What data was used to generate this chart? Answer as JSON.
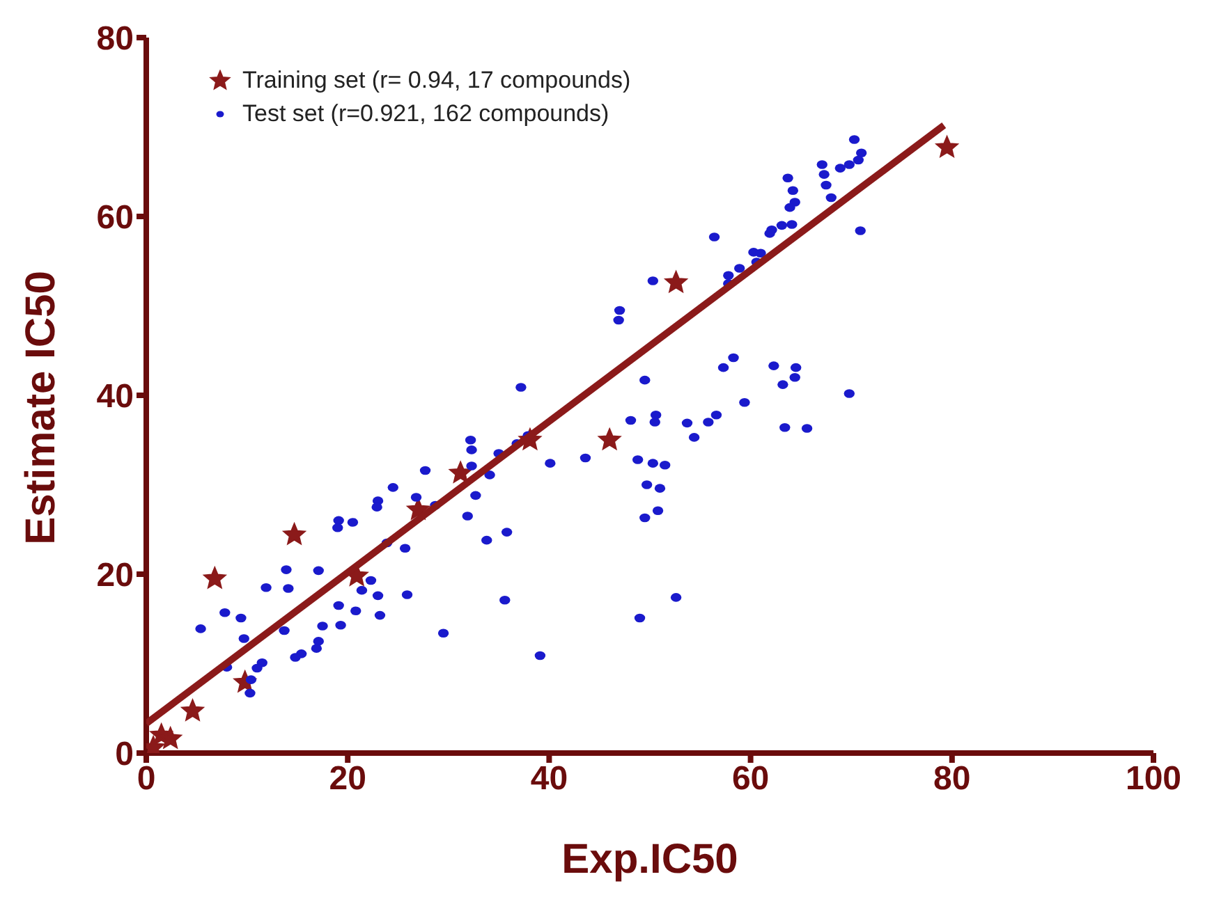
{
  "chart_data": {
    "type": "scatter",
    "xlabel": "Exp.IC50",
    "ylabel": "Estimate IC50",
    "xlim": [
      0,
      100
    ],
    "xticks": [
      0,
      20,
      40,
      60,
      80,
      100
    ],
    "ylim": [
      0,
      80
    ],
    "yticks": [
      0,
      20,
      40,
      60,
      80
    ],
    "grid": false,
    "legend": "top left",
    "series": [
      {
        "name": "Training set (r= 0.94, 17 compounds)",
        "color": "#8b1a1a",
        "marker": "star",
        "x": [
          1.5,
          2.4,
          4.6,
          6.8,
          9.8,
          14.7,
          20.9,
          27,
          31.2,
          38.1,
          46,
          52.6,
          79.5,
          0.7
        ],
        "values": [
          2,
          1.6,
          4.7,
          19.5,
          7.9,
          24.4,
          19.8,
          27.2,
          31.3,
          35,
          35,
          52.6,
          67.7,
          0.6
        ]
      },
      {
        "name": "Test set (r=0.921, 162 compounds)",
        "color": "#1a1acc",
        "marker": "circle",
        "x": [
          32.2,
          32.3,
          27.7,
          24.5,
          26.8,
          23.0,
          22.9,
          28.7,
          32.3,
          31.9,
          32.7,
          33.8,
          19.1,
          19.0,
          20.5,
          23.9,
          25.7,
          13.9,
          17.1,
          11.9,
          14.1,
          22.3,
          21.4,
          23.0,
          25.9,
          7.8,
          9.4,
          5.4,
          9.7,
          19.1,
          20.8,
          19.3,
          17.5,
          23.2,
          29.5,
          13.7,
          17.1,
          16.9,
          15.4,
          14.8,
          11.5,
          11.0,
          8.0,
          10.4,
          10.3,
          37.2,
          49.5,
          58.3,
          57.3,
          59.4,
          48.1,
          50.6,
          50.5,
          53.7,
          54.4,
          55.8,
          56.6,
          37.9,
          36.8,
          35.0,
          40.1,
          43.6,
          48.8,
          50.3,
          51.5,
          49.7,
          51.0,
          50.8,
          49.5,
          34.1,
          35.8,
          35.6,
          39.1,
          49.0,
          52.6,
          70.3,
          71.0,
          70.7,
          69.8,
          68.9,
          67.1,
          67.3,
          67.5,
          68.0,
          63.7,
          64.2,
          64.4,
          63.9,
          64.1,
          63.1,
          62.1,
          61.9,
          70.9,
          56.4,
          60.3,
          61.0,
          60.6,
          58.9,
          57.8,
          57.8,
          50.3,
          47.0,
          46.9,
          62.3,
          64.5,
          64.4,
          63.2,
          69.8,
          63.4,
          65.6
        ],
        "values": [
          35.0,
          33.9,
          31.6,
          29.7,
          28.6,
          28.2,
          27.5,
          27.7,
          32.1,
          26.5,
          28.8,
          23.8,
          26.0,
          25.2,
          25.8,
          23.5,
          22.9,
          20.5,
          20.4,
          18.5,
          18.4,
          19.3,
          18.2,
          17.6,
          17.7,
          15.7,
          15.1,
          13.9,
          12.8,
          16.5,
          15.9,
          14.3,
          14.2,
          15.4,
          13.4,
          13.7,
          12.5,
          11.7,
          11.1,
          10.7,
          10.1,
          9.5,
          9.6,
          8.2,
          6.7,
          40.9,
          41.7,
          44.2,
          43.1,
          39.2,
          37.2,
          37.8,
          37.0,
          36.9,
          35.3,
          37.0,
          37.8,
          35.5,
          34.6,
          33.5,
          32.4,
          33.0,
          32.8,
          32.4,
          32.2,
          30.0,
          29.6,
          27.1,
          26.3,
          31.1,
          24.7,
          17.1,
          10.9,
          15.1,
          17.4,
          68.6,
          67.1,
          66.3,
          65.8,
          65.4,
          65.8,
          64.7,
          63.5,
          62.1,
          64.3,
          62.9,
          61.6,
          61.0,
          59.1,
          59.0,
          58.5,
          58.1,
          58.4,
          57.7,
          56.0,
          55.9,
          54.9,
          54.2,
          53.4,
          52.5,
          52.8,
          49.5,
          48.4,
          43.3,
          43.1,
          42.0,
          41.2,
          40.2,
          36.4,
          36.3
        ]
      },
      {
        "type": "line",
        "color": "#8b1a1a",
        "marker": "none",
        "line_style": "solid",
        "x": [
          0,
          79.2
        ],
        "values": [
          3.3,
          70.2
        ]
      }
    ]
  }
}
